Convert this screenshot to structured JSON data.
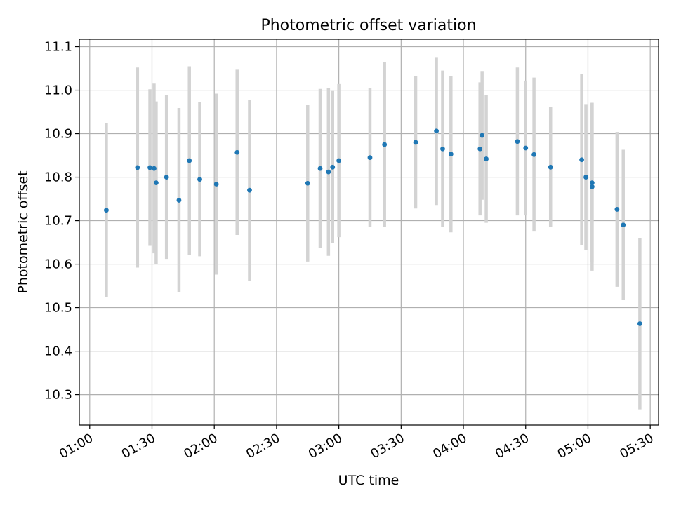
{
  "chart_data": {
    "type": "scatter",
    "title": "Photometric offset variation",
    "xlabel": "UTC time",
    "ylabel": "Photometric offset",
    "grid": true,
    "xlim_minutes": [
      55,
      334
    ],
    "ylim": [
      10.23,
      11.117
    ],
    "x_ticks": [
      "01:00",
      "01:30",
      "02:00",
      "02:30",
      "03:00",
      "03:30",
      "04:00",
      "04:30",
      "05:00",
      "05:30"
    ],
    "y_ticks": [
      10.3,
      10.4,
      10.5,
      10.6,
      10.7,
      10.8,
      10.9,
      11.0,
      11.1
    ],
    "colors": {
      "point": "#1f77b4",
      "errorbar": "#d3d3d3",
      "grid": "#b0b0b0"
    },
    "points": [
      {
        "t": "01:08",
        "y": 10.724,
        "err": 0.2
      },
      {
        "t": "01:23",
        "y": 10.822,
        "err": 0.23
      },
      {
        "t": "01:29",
        "y": 10.822,
        "err": 0.18
      },
      {
        "t": "01:31",
        "y": 10.82,
        "err": 0.195
      },
      {
        "t": "01:32",
        "y": 10.787,
        "err": 0.187
      },
      {
        "t": "01:37",
        "y": 10.8,
        "err": 0.188
      },
      {
        "t": "01:43",
        "y": 10.747,
        "err": 0.212
      },
      {
        "t": "01:48",
        "y": 10.838,
        "err": 0.217
      },
      {
        "t": "01:53",
        "y": 10.795,
        "err": 0.177
      },
      {
        "t": "02:01",
        "y": 10.784,
        "err": 0.208
      },
      {
        "t": "02:11",
        "y": 10.857,
        "err": 0.19
      },
      {
        "t": "02:17",
        "y": 10.77,
        "err": 0.208
      },
      {
        "t": "02:45",
        "y": 10.786,
        "err": 0.18
      },
      {
        "t": "02:51",
        "y": 10.82,
        "err": 0.183
      },
      {
        "t": "02:55",
        "y": 10.812,
        "err": 0.193
      },
      {
        "t": "02:57",
        "y": 10.823,
        "err": 0.175
      },
      {
        "t": "03:00",
        "y": 10.838,
        "err": 0.176
      },
      {
        "t": "03:15",
        "y": 10.845,
        "err": 0.16
      },
      {
        "t": "03:22",
        "y": 10.875,
        "err": 0.19
      },
      {
        "t": "03:37",
        "y": 10.88,
        "err": 0.152
      },
      {
        "t": "03:47",
        "y": 10.906,
        "err": 0.17
      },
      {
        "t": "03:50",
        "y": 10.865,
        "err": 0.18
      },
      {
        "t": "03:54",
        "y": 10.853,
        "err": 0.18
      },
      {
        "t": "04:08",
        "y": 10.865,
        "err": 0.153
      },
      {
        "t": "04:09",
        "y": 10.896,
        "err": 0.148
      },
      {
        "t": "04:11",
        "y": 10.842,
        "err": 0.147
      },
      {
        "t": "04:26",
        "y": 10.882,
        "err": 0.17
      },
      {
        "t": "04:30",
        "y": 10.867,
        "err": 0.155
      },
      {
        "t": "04:34",
        "y": 10.852,
        "err": 0.177
      },
      {
        "t": "04:42",
        "y": 10.823,
        "err": 0.138
      },
      {
        "t": "04:57",
        "y": 10.84,
        "err": 0.197
      },
      {
        "t": "04:59",
        "y": 10.8,
        "err": 0.168
      },
      {
        "t": "05:02",
        "y": 10.778,
        "err": 0.193
      },
      {
        "t": "05:02",
        "y": 10.787,
        "err": 0.183
      },
      {
        "t": "05:14",
        "y": 10.726,
        "err": 0.178
      },
      {
        "t": "05:17",
        "y": 10.69,
        "err": 0.173
      },
      {
        "t": "05:25",
        "y": 10.463,
        "err": 0.197
      }
    ]
  }
}
